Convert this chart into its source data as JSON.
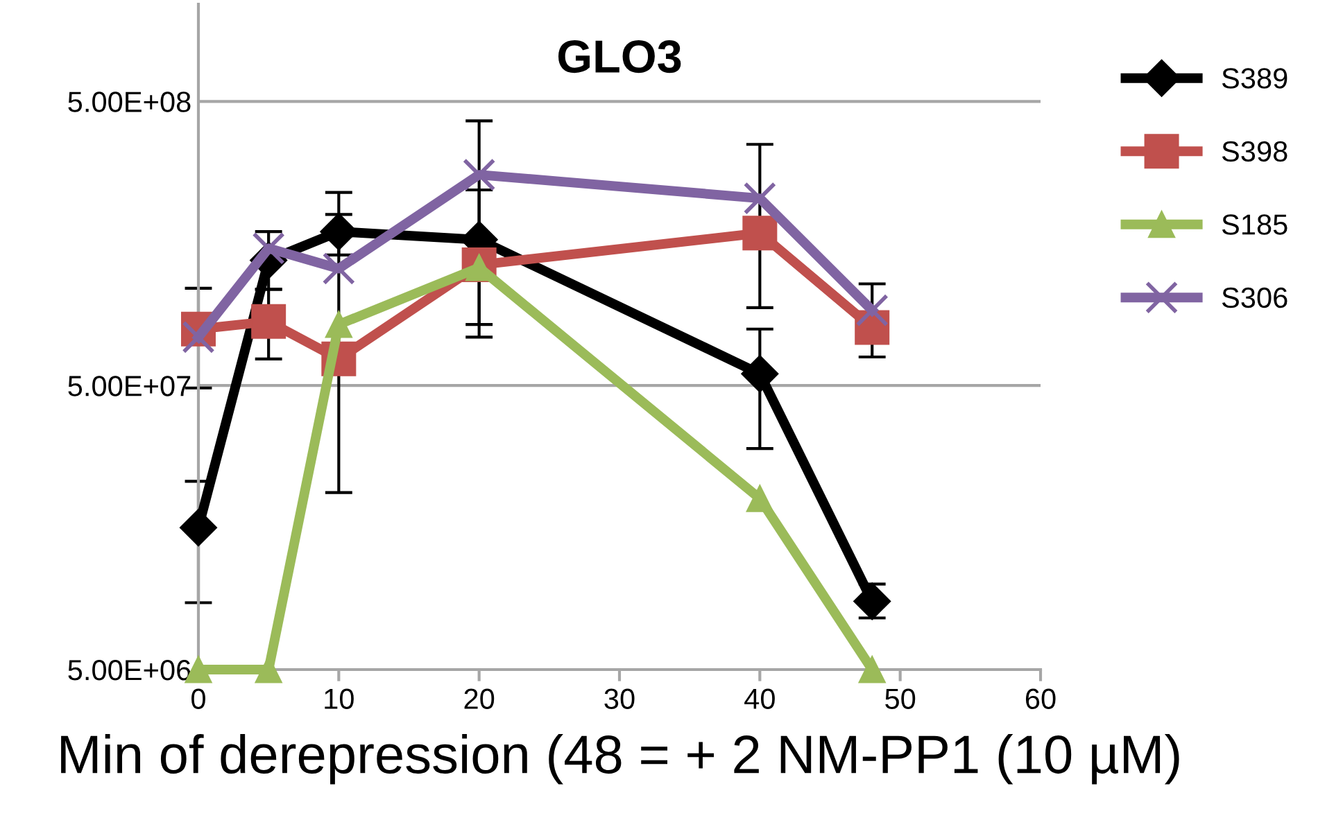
{
  "chart_data": {
    "type": "line",
    "title": "GLO3",
    "xlabel": "Min of derepression (48 = + 2 NM-PP1 (10 µM)",
    "x": [
      0,
      5,
      10,
      20,
      40,
      48
    ],
    "series": [
      {
        "name": "S389",
        "color": "#000000",
        "marker": "diamond",
        "values": [
          15800000.0,
          138000000.0,
          174000000.0,
          163000000.0,
          55000000.0,
          8700000.0
        ],
        "errors": [
          [
            8600000.0,
            23000000.0
          ],
          [
            109000000.0,
            174000000.0
          ],
          [
            144000000.0,
            239000000.0
          ],
          [
            82000000.0,
            244000000.0
          ],
          [
            30000000.0,
            79000000.0
          ],
          [
            7600000.0,
            10000000.0
          ]
        ]
      },
      {
        "name": "S398",
        "color": "#c0504d",
        "marker": "square",
        "values": [
          79000000.0,
          84000000.0,
          62000000.0,
          133000000.0,
          172000000.0,
          80000000.0
        ],
        "errors": [
          [
            49000000.0,
            110000000.0
          ],
          [
            62000000.0,
            109000000.0
          ],
          [
            21000000.0,
            200000000.0
          ],
          [
            74000000.0,
            244000000.0
          ],
          [
            94000000.0,
            353000000.0
          ],
          [
            63000000.0,
            114000000.0
          ]
        ]
      },
      {
        "name": "S185",
        "color": "#9bbb59",
        "marker": "triangle",
        "values": [
          5000000.0,
          5000000.0,
          82000000.0,
          130000000.0,
          20000000.0,
          5000000.0
        ]
      },
      {
        "name": "S306",
        "color": "#8064a2",
        "marker": "cross",
        "values": [
          74000000.0,
          152000000.0,
          129000000.0,
          276000000.0,
          228000000.0,
          92000000.0
        ],
        "errors": [
          null,
          null,
          null,
          [
            244000000.0,
            427000000.0
          ],
          null,
          null
        ]
      }
    ],
    "log": "y",
    "xlim": [
      0,
      60
    ],
    "ylim": [
      5000000.0,
      1100000000.0
    ],
    "xticks": [
      0,
      10,
      20,
      30,
      40,
      50,
      60
    ],
    "yticks": [
      {
        "value": 5000000.0,
        "label": "5.00E+06"
      },
      {
        "value": 50000000.0,
        "label": "5.00E+07"
      },
      {
        "value": 500000000.0,
        "label": "5.00E+08"
      }
    ],
    "grid": "y",
    "legend": "right",
    "line_style": "solid"
  }
}
